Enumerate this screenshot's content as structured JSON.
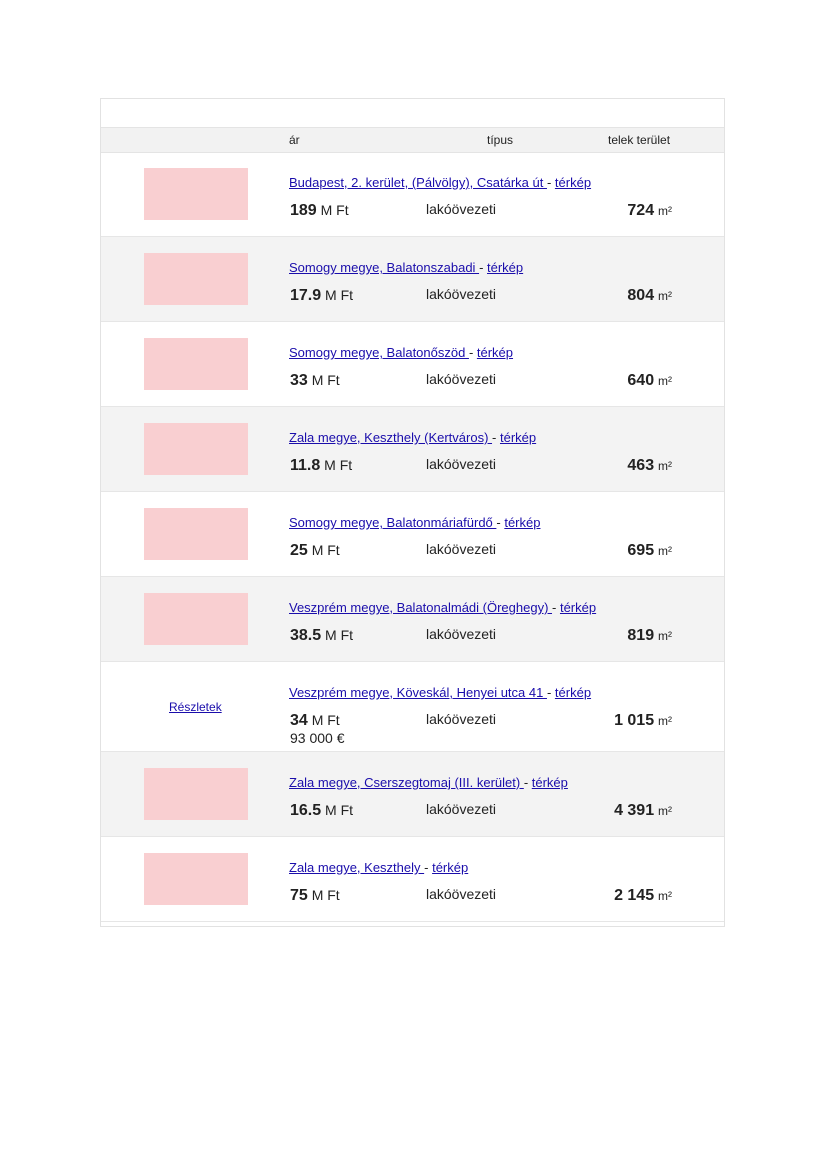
{
  "header": {
    "price": "ár",
    "type": "típus",
    "area": "telek terület"
  },
  "map_label": "térkép",
  "details_label": "Részletek",
  "listings": [
    {
      "address": "Budapest, 2. kerület, (Pálvölgy), Csatárka út ",
      "price": "189",
      "price_unit": "M Ft",
      "type": "lakóövezeti",
      "area": "724",
      "area_unit": "m²",
      "has_image": true
    },
    {
      "address": "Somogy megye, Balatonszabadi ",
      "price": "17.9",
      "price_unit": "M Ft",
      "type": "lakóövezeti",
      "area": "804",
      "area_unit": "m²",
      "has_image": true
    },
    {
      "address": "Somogy megye, Balatonőszöd ",
      "price": "33",
      "price_unit": "M Ft",
      "type": "lakóövezeti",
      "area": "640",
      "area_unit": "m²",
      "has_image": true
    },
    {
      "address": "Zala megye, Keszthely (Kertváros) ",
      "price": "11.8",
      "price_unit": "M Ft",
      "type": "lakóövezeti",
      "area": "463",
      "area_unit": "m²",
      "has_image": true
    },
    {
      "address": "Somogy megye, Balatonmáriafürdő ",
      "price": "25",
      "price_unit": "M Ft",
      "type": "lakóövezeti",
      "area": "695",
      "area_unit": "m²",
      "has_image": true
    },
    {
      "address": "Veszprém megye, Balatonalmádi (Öreghegy) ",
      "price": "38.5",
      "price_unit": "M Ft",
      "type": "lakóövezeti",
      "area": "819",
      "area_unit": "m²",
      "has_image": true
    },
    {
      "address": "Veszprém megye, Köveskál, Henyei utca 41 ",
      "price": "34",
      "price_unit": "M Ft",
      "price_eur": "93 000 €",
      "type": "lakóövezeti",
      "area": "1 015",
      "area_unit": "m²",
      "has_image": false
    },
    {
      "address": "Zala megye, Cserszegtomaj (III. kerület) ",
      "price": "16.5",
      "price_unit": "M Ft",
      "type": "lakóövezeti",
      "area": "4 391",
      "area_unit": "m²",
      "has_image": true
    },
    {
      "address": "Zala megye, Keszthely ",
      "price": "75",
      "price_unit": "M Ft",
      "type": "lakóövezeti",
      "area": "2 145",
      "area_unit": "m²",
      "has_image": true
    }
  ]
}
